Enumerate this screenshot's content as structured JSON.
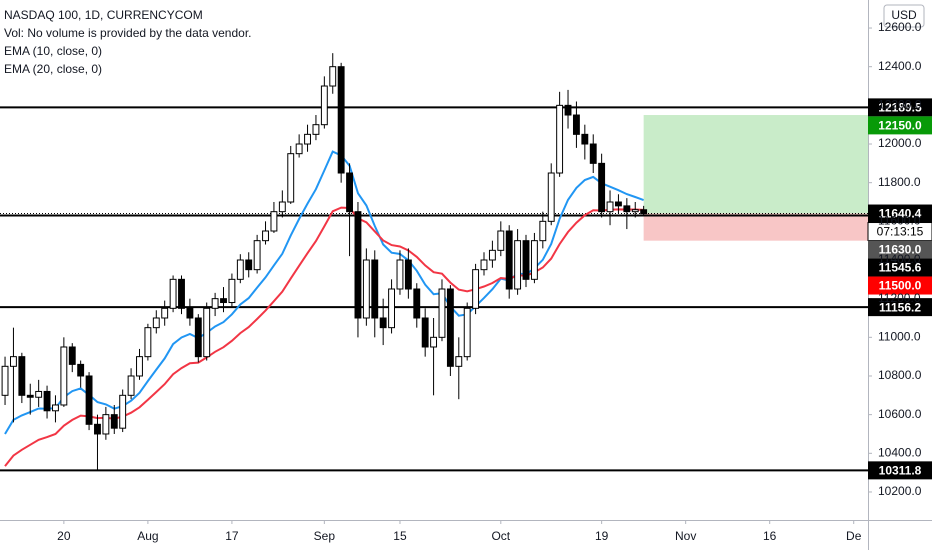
{
  "chart_data": {
    "type": "candlestick",
    "title": "NASDAQ 100, 1D, CURRENCYCOM",
    "subtitle": "Vol: No volume is provided by the data vendor.",
    "currency": "USD",
    "up_color": "#ffffff",
    "down_color": "#000000",
    "open": [
      10700,
      10850,
      10900,
      10700,
      10690,
      10720,
      10620,
      10650,
      10950,
      10860,
      10800,
      10550,
      10500,
      10600,
      10530,
      10700,
      10800,
      10900,
      11050,
      11100,
      11150,
      11300,
      11150,
      11100,
      10900,
      11150,
      11200,
      11180,
      11300,
      11400,
      11350,
      11500,
      11550,
      11650,
      11700,
      11950,
      12000,
      12050,
      12100,
      12300,
      12400,
      11850,
      11650,
      11100,
      11400,
      11100,
      11050,
      11250,
      11400,
      11250,
      11100,
      10950,
      11000,
      11250,
      10850,
      10900,
      11150,
      11350,
      11400,
      11450,
      11550,
      11250,
      11500,
      11300,
      11500,
      11600,
      11850,
      12200,
      12150,
      12050,
      12000,
      11900,
      11650,
      11700,
      11680,
      11650,
      11660
    ],
    "high": [
      10900,
      11050,
      10920,
      10760,
      10780,
      10750,
      10700,
      11000,
      10970,
      10880,
      10820,
      10600,
      10640,
      10650,
      10730,
      10840,
      10940,
      11070,
      11140,
      11190,
      11320,
      11320,
      11200,
      11120,
      11180,
      11230,
      11260,
      11330,
      11430,
      11440,
      11530,
      11600,
      11700,
      11760,
      11990,
      12050,
      12100,
      12150,
      12350,
      12470,
      12420,
      11900,
      11700,
      11460,
      11450,
      11200,
      11300,
      11450,
      11460,
      11280,
      11150,
      11100,
      11300,
      11270,
      11000,
      11180,
      11380,
      11440,
      11500,
      11600,
      11580,
      11560,
      11530,
      11540,
      11650,
      11900,
      12270,
      12280,
      12220,
      12100,
      12050,
      11950,
      11760,
      11740,
      11720,
      11700,
      11680
    ],
    "low": [
      10650,
      10560,
      10660,
      10600,
      10640,
      10580,
      10560,
      10640,
      10820,
      10740,
      10520,
      10310,
      10470,
      10500,
      10510,
      10680,
      10780,
      10880,
      11020,
      11060,
      11130,
      11120,
      11060,
      10870,
      10880,
      11110,
      11130,
      11160,
      11280,
      11310,
      11330,
      11480,
      11540,
      11620,
      11690,
      11930,
      11960,
      12020,
      12080,
      12260,
      11800,
      11420,
      11000,
      11060,
      11000,
      10960,
      11020,
      11220,
      11200,
      11050,
      10900,
      10700,
      10980,
      10800,
      10680,
      10880,
      11120,
      11320,
      11360,
      11420,
      11200,
      11220,
      11260,
      11280,
      11460,
      11580,
      11830,
      12080,
      11980,
      11920,
      11850,
      11620,
      11580,
      11640,
      11560,
      11620,
      11630
    ],
    "close": [
      10850,
      10900,
      10700,
      10690,
      10720,
      10620,
      10650,
      10950,
      10860,
      10800,
      10550,
      10500,
      10600,
      10530,
      10700,
      10800,
      10900,
      11050,
      11100,
      11150,
      11300,
      11150,
      11100,
      10900,
      11150,
      11200,
      11180,
      11300,
      11400,
      11350,
      11500,
      11550,
      11650,
      11700,
      11950,
      12000,
      12050,
      12100,
      12300,
      12400,
      11850,
      11650,
      11100,
      11400,
      11100,
      11050,
      11250,
      11400,
      11250,
      11100,
      10950,
      11000,
      11250,
      10850,
      10900,
      11150,
      11350,
      11400,
      11450,
      11550,
      11250,
      11500,
      11300,
      11500,
      11600,
      11850,
      12200,
      12150,
      12050,
      12000,
      11900,
      11650,
      11700,
      11680,
      11650,
      11660,
      11640
    ],
    "series": [
      {
        "name": "EMA (10, close, 0)",
        "color": "#2196f3",
        "values": [
          10500,
          10573,
          10596,
          10613,
          10632,
          10630,
          10634,
          10691,
          10722,
          10736,
          10702,
          10665,
          10653,
          10631,
          10644,
          10672,
          10713,
          10774,
          10833,
          10891,
          10965,
          10999,
          11017,
          10996,
          11024,
          11056,
          11079,
          11119,
          11170,
          11203,
          11257,
          11310,
          11372,
          11432,
          11526,
          11612,
          11692,
          11766,
          11863,
          11961,
          11941,
          11888,
          11745,
          11682,
          11576,
          11480,
          11438,
          11431,
          11398,
          11344,
          11272,
          11223,
          11228,
          11159,
          11112,
          11119,
          11161,
          11204,
          11249,
          11304,
          11294,
          11331,
          11325,
          11357,
          11401,
          11483,
          11613,
          11711,
          11773,
          11814,
          11830,
          11797,
          11779,
          11761,
          11741,
          11726,
          11710
        ]
      },
      {
        "name": "EMA (20, close, 0)",
        "color": "#f23645",
        "values": [
          10334,
          10388,
          10418,
          10444,
          10470,
          10484,
          10500,
          10543,
          10573,
          10595,
          10591,
          10582,
          10584,
          10579,
          10590,
          10610,
          10638,
          10677,
          10717,
          10758,
          10809,
          10841,
          10866,
          10869,
          10896,
          10925,
          10949,
          10982,
          11022,
          11053,
          11095,
          11138,
          11187,
          11236,
          11304,
          11370,
          11435,
          11498,
          11574,
          11652,
          11671,
          11669,
          11615,
          11595,
          11548,
          11501,
          11477,
          11470,
          11449,
          11416,
          11372,
          11337,
          11329,
          11283,
          11247,
          11238,
          11249,
          11263,
          11281,
          11307,
          11302,
          11321,
          11319,
          11336,
          11361,
          11407,
          11482,
          11545,
          11593,
          11632,
          11657,
          11656,
          11660,
          11662,
          11661,
          11661,
          11659
        ]
      }
    ],
    "xlim": [
      -0.6,
      102.7
    ],
    "xticks": [
      {
        "value": 7,
        "label": "20"
      },
      {
        "value": 17,
        "label": "Aug"
      },
      {
        "value": 27,
        "label": "17"
      },
      {
        "value": 38,
        "label": "Sep"
      },
      {
        "value": 47,
        "label": "15"
      },
      {
        "value": 59,
        "label": "Oct"
      },
      {
        "value": 71,
        "label": "19"
      },
      {
        "value": 81,
        "label": "Nov"
      },
      {
        "value": 91,
        "label": "16"
      },
      {
        "value": 101,
        "label": "De"
      }
    ],
    "ylim": [
      10055,
      12745
    ],
    "yticks": [
      {
        "value": 10200,
        "label": "10200.0"
      },
      {
        "value": 10400,
        "label": "10400.0"
      },
      {
        "value": 10600,
        "label": "10600.0"
      },
      {
        "value": 10800,
        "label": "10800.0"
      },
      {
        "value": 11000,
        "label": "11000.0"
      },
      {
        "value": 11200,
        "label": "11200.0"
      },
      {
        "value": 11400,
        "label": "11400.0"
      },
      {
        "value": 11600,
        "label": "11600.0"
      },
      {
        "value": 11800,
        "label": "11800.0"
      },
      {
        "value": 12000,
        "label": "12000.0"
      },
      {
        "value": 12200,
        "label": "12200.0"
      },
      {
        "value": 12400,
        "label": "12400.0"
      },
      {
        "value": 12600,
        "label": "12600.0"
      }
    ],
    "hlines": [
      12189.5,
      11630,
      11156.2,
      10311.8
    ],
    "current_price": 11640.4,
    "countdown": "07:13:15",
    "position": {
      "entry": 11640.4,
      "target": 12150,
      "stop": 11500,
      "start": 76
    },
    "price_labels": [
      {
        "value": 12189.5,
        "label": "12189.5",
        "color": "#000000"
      },
      {
        "value": 12150,
        "label": "12150.0",
        "color": "#089a08"
      },
      {
        "value": 11640.4,
        "label": "11640.4",
        "color": "#000000"
      },
      {
        "value": 11630,
        "label": "11630.0",
        "color": "#555555"
      },
      {
        "value": 11545.6,
        "label": "11545.6",
        "color": "#000000"
      },
      {
        "value": 11500,
        "label": "11500.0",
        "color": "#ff0000"
      },
      {
        "value": 11156.2,
        "label": "11156.2",
        "color": "#000000"
      },
      {
        "value": 10311.8,
        "label": "10311.8",
        "color": "#000000"
      }
    ]
  }
}
